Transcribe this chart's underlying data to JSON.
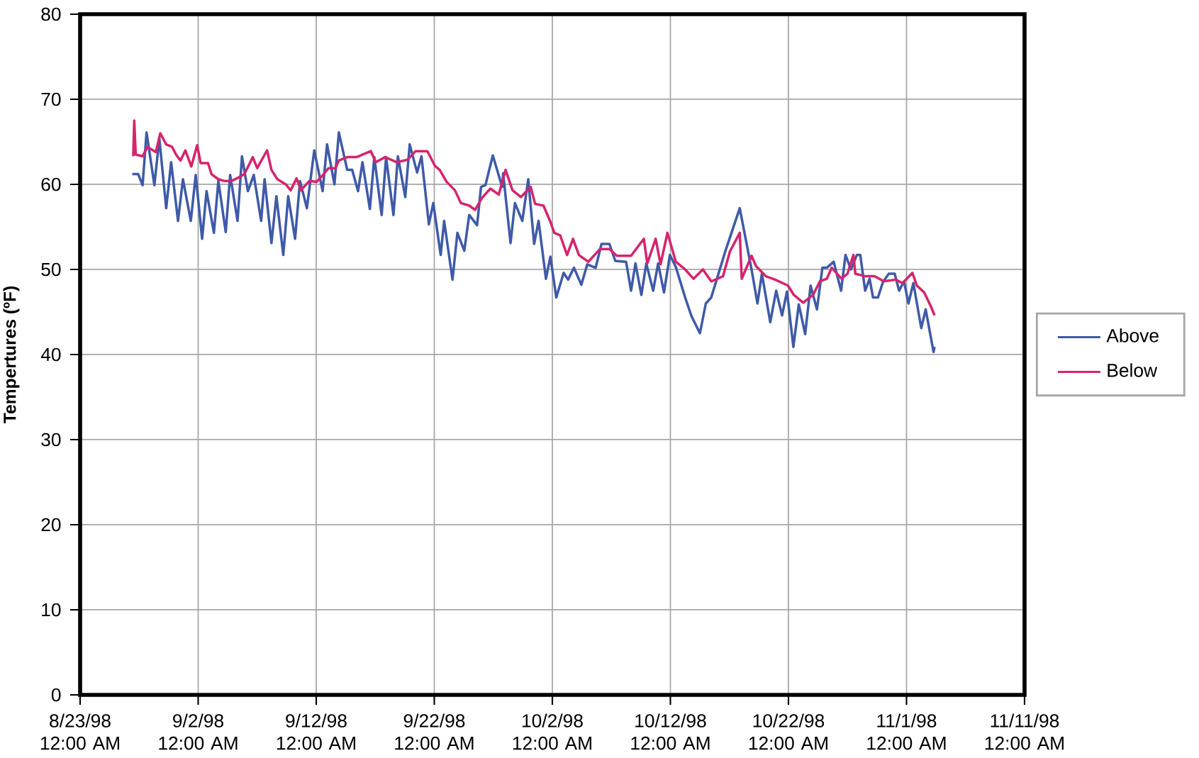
{
  "chart_data": {
    "type": "line",
    "ylabel": "Tempertures (ºF)",
    "xlim": [
      "1998-08-23",
      "1998-11-11"
    ],
    "xticks": [
      {
        "value": "1998-08-23",
        "label": "8/23/98 12:00 AM"
      },
      {
        "value": "1998-09-02",
        "label": "9/2/98 12:00 AM"
      },
      {
        "value": "1998-09-12",
        "label": "9/12/98 12:00 AM"
      },
      {
        "value": "1998-09-22",
        "label": "9/22/98 12:00 AM"
      },
      {
        "value": "1998-10-02",
        "label": "10/2/98 12:00 AM"
      },
      {
        "value": "1998-10-12",
        "label": "10/12/98 12:00 AM"
      },
      {
        "value": "1998-10-22",
        "label": "10/22/98 12:00 AM"
      },
      {
        "value": "1998-11-01",
        "label": "11/1/98 12:00 AM"
      },
      {
        "value": "1998-11-11",
        "label": "11/11/98 12:00 AM"
      }
    ],
    "ylim": [
      0,
      80
    ],
    "yticks": [
      0,
      10,
      20,
      30,
      40,
      50,
      60,
      70,
      80
    ],
    "grid": true,
    "legend": "right",
    "series": [
      {
        "name": "Above",
        "color": "#3f5aa8",
        "x": [
          "1998-08-27T10:00",
          "1998-08-27T22:00",
          "1998-08-28T07:00",
          "1998-08-28T15:00",
          "1998-08-29T07:00",
          "1998-08-29T17:00",
          "1998-08-30T07:00",
          "1998-08-30T17:00",
          "1998-08-31T07:00",
          "1998-08-31T17:00",
          "1998-09-01T09:00",
          "1998-09-01T19:00",
          "1998-09-02T08:00",
          "1998-09-02T17:00",
          "1998-09-03T08:00",
          "1998-09-03T17:00",
          "1998-09-04T08:00",
          "1998-09-04T17:00",
          "1998-09-05T08:00",
          "1998-09-05T17:00",
          "1998-09-06T05:00",
          "1998-09-06T17:00",
          "1998-09-07T08:00",
          "1998-09-07T15:00",
          "1998-09-08T05:00",
          "1998-09-08T15:00",
          "1998-09-09T05:00",
          "1998-09-09T15:00",
          "1998-09-10T05:00",
          "1998-09-10T15:00",
          "1998-09-11T05:00",
          "1998-09-11T20:00",
          "1998-09-12T13:00",
          "1998-09-12T22:00",
          "1998-09-13T13:00",
          "1998-09-13T22:00",
          "1998-09-14T15:00",
          "1998-09-15T01:00",
          "1998-09-15T13:00",
          "1998-09-15T22:00",
          "1998-09-16T13:00",
          "1998-09-16T22:00",
          "1998-09-17T13:00",
          "1998-09-17T22:00",
          "1998-09-18T13:00",
          "1998-09-18T22:00",
          "1998-09-19T13:00",
          "1998-09-19T22:00",
          "1998-09-20T13:00",
          "1998-09-20T22:00",
          "1998-09-21T13:00",
          "1998-09-21T22:00",
          "1998-09-22T13:00",
          "1998-09-22T20:00",
          "1998-09-23T13:00",
          "1998-09-23T23:00",
          "1998-09-24T13:00",
          "1998-09-24T23:00",
          "1998-09-25T15:00",
          "1998-09-25T23:00",
          "1998-09-26T08:00",
          "1998-09-26T23:00",
          "1998-09-27T18:00",
          "1998-09-27T20:00",
          "1998-09-28T11:00",
          "1998-09-28T20:00",
          "1998-09-29T11:00",
          "1998-09-29T23:00",
          "1998-09-30T11:00",
          "1998-09-30T20:00",
          "1998-10-01T11:00",
          "1998-10-01T20:00",
          "1998-10-02T08:00",
          "1998-10-02T23:00",
          "1998-10-03T08:00",
          "1998-10-03T20:00",
          "1998-10-04T11:00",
          "1998-10-04T23:00",
          "1998-10-05T16:00",
          "1998-10-06T04:00",
          "1998-10-06T20:00",
          "1998-10-07T08:00",
          "1998-10-08T06:00",
          "1998-10-08T16:00",
          "1998-10-09T01:00",
          "1998-10-09T13:00",
          "1998-10-09T23:00",
          "1998-10-10T13:00",
          "1998-10-10T23:00",
          "1998-10-11T11:00",
          "1998-10-11T23:00",
          "1998-10-12T11:00",
          "1998-10-13T06:00",
          "1998-10-13T19:00",
          "1998-10-14T12:00",
          "1998-10-15T00:00",
          "1998-10-15T11:00",
          "1998-10-16T16:00",
          "1998-10-17T21:00",
          "1998-10-18T21:00",
          "1998-10-19T09:00",
          "1998-10-19T18:00",
          "1998-10-20T11:00",
          "1998-10-20T23:00",
          "1998-10-21T11:00",
          "1998-10-21T21:00",
          "1998-10-22T10:00",
          "1998-10-22T21:00",
          "1998-10-23T10:00",
          "1998-10-23T21:00",
          "1998-10-24T10:00",
          "1998-10-24T21:00",
          "1998-10-25T06:00",
          "1998-10-25T20:00",
          "1998-10-26T11:00",
          "1998-10-26T20:00",
          "1998-10-27T07:00",
          "1998-10-27T19:00",
          "1998-10-28T02:00",
          "1998-10-28T12:00",
          "1998-10-28T21:00",
          "1998-10-29T04:00",
          "1998-10-29T14:00",
          "1998-10-30T00:00",
          "1998-10-30T12:00",
          "1998-10-31T00:00",
          "1998-10-31T09:00",
          "1998-10-31T19:00",
          "1998-11-01T04:00",
          "1998-11-01T14:00",
          "1998-11-02T06:00",
          "1998-11-02T15:00",
          "1998-11-03T07:00",
          "1998-11-03T09:00"
        ],
        "values": [
          61.2,
          61.2,
          59.9,
          66.1,
          59.9,
          65.4,
          57.2,
          62.6,
          55.7,
          60.6,
          55.7,
          61.1,
          53.6,
          59.2,
          54.3,
          60.4,
          54.4,
          61.1,
          55.7,
          63.3,
          59.2,
          61.1,
          55.7,
          60.6,
          53.1,
          58.6,
          51.7,
          58.6,
          53.6,
          60.4,
          57.2,
          64.0,
          59.2,
          64.7,
          60.0,
          66.1,
          61.7,
          61.7,
          59.2,
          62.6,
          57.1,
          63.2,
          56.4,
          63.2,
          56.4,
          63.3,
          58.5,
          64.7,
          61.4,
          63.3,
          55.3,
          57.8,
          51.7,
          55.7,
          48.8,
          54.3,
          52.2,
          56.4,
          55.2,
          59.7,
          59.9,
          63.4,
          59.7,
          61.3,
          53.1,
          57.8,
          55.7,
          60.6,
          53.0,
          55.7,
          48.9,
          51.5,
          46.7,
          49.6,
          48.8,
          50.2,
          48.2,
          50.6,
          50.2,
          53.0,
          53.0,
          51.0,
          50.9,
          47.5,
          50.7,
          47.0,
          50.7,
          47.5,
          50.7,
          47.3,
          51.7,
          50.3,
          46.7,
          44.5,
          42.5,
          46.0,
          46.7,
          52.2,
          57.2,
          50.0,
          46.0,
          49.5,
          43.8,
          47.5,
          44.6,
          47.4,
          40.9,
          45.9,
          42.4,
          48.1,
          45.3,
          50.2,
          50.2,
          50.9,
          47.5,
          51.7,
          50.0,
          51.7,
          51.7,
          47.5,
          48.9,
          46.7,
          46.7,
          48.5,
          49.5,
          49.5,
          47.5,
          48.6,
          46.0,
          48.4,
          43.1,
          45.3,
          40.3,
          40.9
        ]
      },
      {
        "name": "Below",
        "color": "#d6246e",
        "x": [
          "1998-08-27T12:00",
          "1998-08-27T14:00",
          "1998-08-27T17:00",
          "1998-08-28T07:00",
          "1998-08-28T17:00",
          "1998-08-29T10:00",
          "1998-08-29T19:00",
          "1998-08-30T07:00",
          "1998-08-30T19:00",
          "1998-08-31T03:00",
          "1998-08-31T12:00",
          "1998-08-31T22:00",
          "1998-09-01T10:00",
          "1998-09-01T22:00",
          "1998-09-02T05:00",
          "1998-09-02T20:00",
          "1998-09-03T03:00",
          "1998-09-03T17:00",
          "1998-09-04T05:00",
          "1998-09-04T20:00",
          "1998-09-05T10:00",
          "1998-09-05T22:00",
          "1998-09-06T15:00",
          "1998-09-07T00:00",
          "1998-09-07T20:00",
          "1998-09-08T05:00",
          "1998-09-08T17:00",
          "1998-09-09T10:00",
          "1998-09-09T20:00",
          "1998-09-10T08:00",
          "1998-09-10T17:00",
          "1998-09-11T10:00",
          "1998-09-12T01:00",
          "1998-09-12T15:00",
          "1998-09-13T01:00",
          "1998-09-13T15:00",
          "1998-09-13T22:00",
          "1998-09-14T15:00",
          "1998-09-15T10:00",
          "1998-09-16T15:00",
          "1998-09-17T01:00",
          "1998-09-17T20:00",
          "1998-09-18T20:00",
          "1998-09-19T18:00",
          "1998-09-20T10:00",
          "1998-09-21T10:00",
          "1998-09-22T01:00",
          "1998-09-22T11:00",
          "1998-09-23T01:00",
          "1998-09-23T18:00",
          "1998-09-24T06:00",
          "1998-09-24T23:00",
          "1998-09-25T11:00",
          "1998-09-26T01:00",
          "1998-09-26T18:00",
          "1998-09-27T11:00",
          "1998-09-28T01:00",
          "1998-09-28T15:00",
          "1998-09-29T08:00",
          "1998-09-30T04:00",
          "1998-09-30T13:00",
          "1998-10-01T06:00",
          "1998-10-01T20:00",
          "1998-10-02T04:00",
          "1998-10-02T16:00",
          "1998-10-03T06:00",
          "1998-10-03T18:00",
          "1998-10-04T06:00",
          "1998-10-05T01:00",
          "1998-10-06T01:00",
          "1998-10-06T20:00",
          "1998-10-07T11:00",
          "1998-10-08T16:00",
          "1998-10-09T18:00",
          "1998-10-10T01:00",
          "1998-10-10T18:00",
          "1998-10-11T04:00",
          "1998-10-11T18:00",
          "1998-10-12T11:00",
          "1998-10-13T06:00",
          "1998-10-13T23:00",
          "1998-10-14T18:00",
          "1998-10-15T11:00",
          "1998-10-16T11:00",
          "1998-10-17T01:00",
          "1998-10-17T21:00",
          "1998-10-18T01:00",
          "1998-10-18T21:00",
          "1998-10-19T06:00",
          "1998-10-20T02:00",
          "1998-10-20T21:00",
          "1998-10-21T23:00",
          "1998-10-22T11:00",
          "1998-10-23T06:00",
          "1998-10-24T02:00",
          "1998-10-24T16:00",
          "1998-10-25T06:00",
          "1998-10-25T16:00",
          "1998-10-26T12:00",
          "1998-10-27T00:00",
          "1998-10-27T12:00",
          "1998-10-27T16:00",
          "1998-10-28T12:00",
          "1998-10-29T07:00",
          "1998-10-30T02:00",
          "1998-10-31T02:00",
          "1998-10-31T16:00",
          "1998-11-01T12:00",
          "1998-11-01T21:00",
          "1998-11-02T12:00",
          "1998-11-03T02:00",
          "1998-11-03T09:00"
        ],
        "values": [
          63.3,
          67.5,
          63.5,
          63.3,
          64.4,
          63.8,
          66.0,
          64.7,
          64.4,
          63.5,
          62.8,
          64.0,
          62.1,
          64.6,
          62.5,
          62.5,
          61.2,
          60.6,
          60.4,
          60.4,
          60.8,
          61.2,
          63.2,
          61.9,
          64.0,
          61.7,
          60.6,
          60.0,
          59.3,
          60.7,
          59.3,
          60.4,
          60.3,
          61.2,
          61.9,
          61.9,
          62.8,
          63.2,
          63.2,
          63.9,
          62.6,
          63.2,
          62.6,
          62.9,
          63.9,
          63.9,
          62.2,
          61.7,
          60.3,
          59.3,
          57.8,
          57.5,
          57.0,
          58.4,
          59.5,
          58.8,
          61.7,
          59.3,
          58.5,
          59.7,
          57.7,
          57.5,
          55.6,
          54.3,
          54.0,
          51.7,
          53.6,
          51.7,
          50.9,
          52.4,
          52.4,
          51.6,
          51.6,
          53.6,
          50.7,
          53.6,
          50.6,
          54.3,
          50.9,
          50.0,
          48.9,
          50.0,
          48.6,
          49.2,
          52.1,
          54.3,
          48.9,
          51.6,
          50.4,
          49.2,
          48.8,
          48.1,
          47.0,
          46.1,
          47.0,
          48.6,
          48.9,
          50.2,
          48.9,
          49.5,
          51.7,
          49.5,
          49.2,
          49.2,
          48.6,
          48.8,
          48.4,
          49.6,
          48.1,
          47.3,
          45.6,
          44.6
        ]
      }
    ]
  }
}
